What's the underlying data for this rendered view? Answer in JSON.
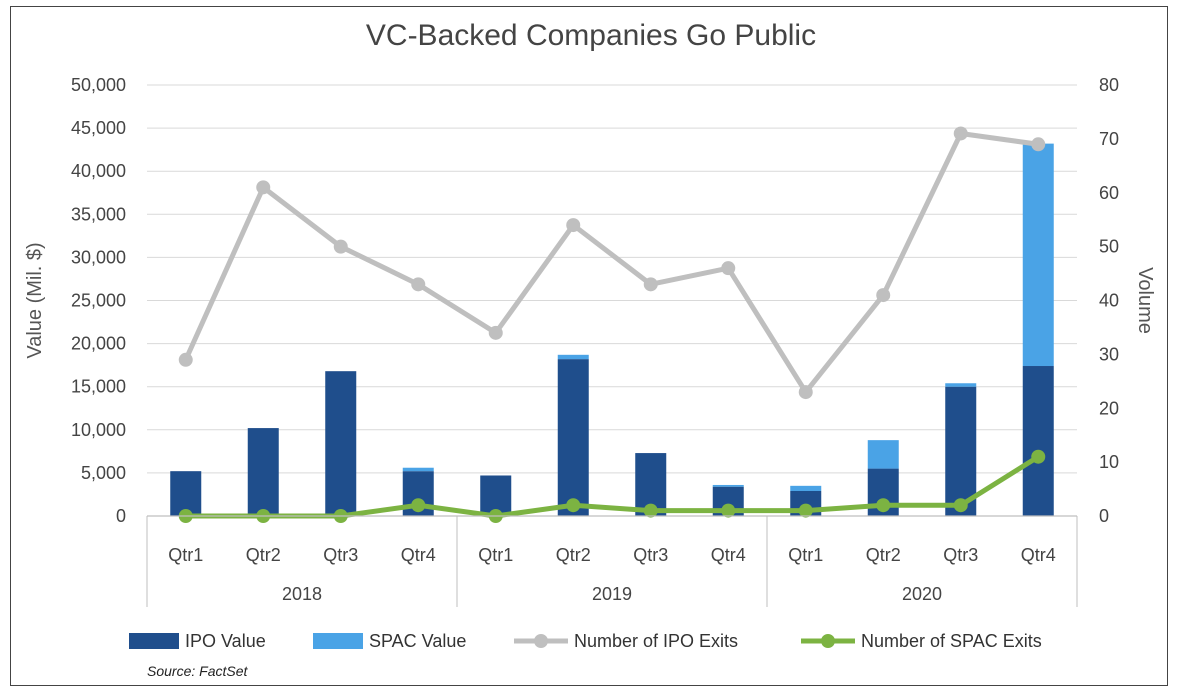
{
  "chart_data": {
    "type": "bar",
    "title": "VC-Backed Companies Go Public",
    "ylabel": "Value (Mil. $)",
    "y2label": "Volume",
    "ylim": [
      0,
      50000
    ],
    "y2lim": [
      0,
      80
    ],
    "yticks": [
      "0",
      "5,000",
      "10,000",
      "15,000",
      "20,000",
      "25,000",
      "30,000",
      "35,000",
      "40,000",
      "45,000",
      "50,000"
    ],
    "y2ticks": [
      "0",
      "10",
      "20",
      "30",
      "40",
      "50",
      "60",
      "70",
      "80"
    ],
    "categories": [
      "Qtr1",
      "Qtr2",
      "Qtr3",
      "Qtr4",
      "Qtr1",
      "Qtr2",
      "Qtr3",
      "Qtr4",
      "Qtr1",
      "Qtr2",
      "Qtr3",
      "Qtr4"
    ],
    "groups": [
      {
        "label": "2018",
        "count": 4
      },
      {
        "label": "2019",
        "count": 4
      },
      {
        "label": "2020",
        "count": 4
      }
    ],
    "series": [
      {
        "name": "IPO Value",
        "kind": "bar",
        "axis": "left",
        "color": "#1f4e8c",
        "values": [
          5200,
          10200,
          16800,
          5200,
          4700,
          18200,
          7300,
          3400,
          2900,
          5500,
          15000,
          17400
        ]
      },
      {
        "name": "SPAC Value",
        "kind": "bar",
        "axis": "left",
        "color": "#4aa3e6",
        "values": [
          0,
          0,
          0,
          400,
          0,
          500,
          0,
          200,
          600,
          3300,
          400,
          25800
        ]
      },
      {
        "name": "Number of IPO Exits",
        "kind": "line",
        "axis": "right",
        "color": "#bfbfbf",
        "values": [
          29,
          61,
          50,
          43,
          34,
          54,
          43,
          46,
          23,
          41,
          71,
          69
        ]
      },
      {
        "name": "Number of SPAC Exits",
        "kind": "line",
        "axis": "right",
        "color": "#7cb342",
        "values": [
          0,
          0,
          0,
          2,
          0,
          2,
          1,
          1,
          1,
          2,
          2,
          11
        ]
      }
    ],
    "source": "Source: FactSet"
  }
}
